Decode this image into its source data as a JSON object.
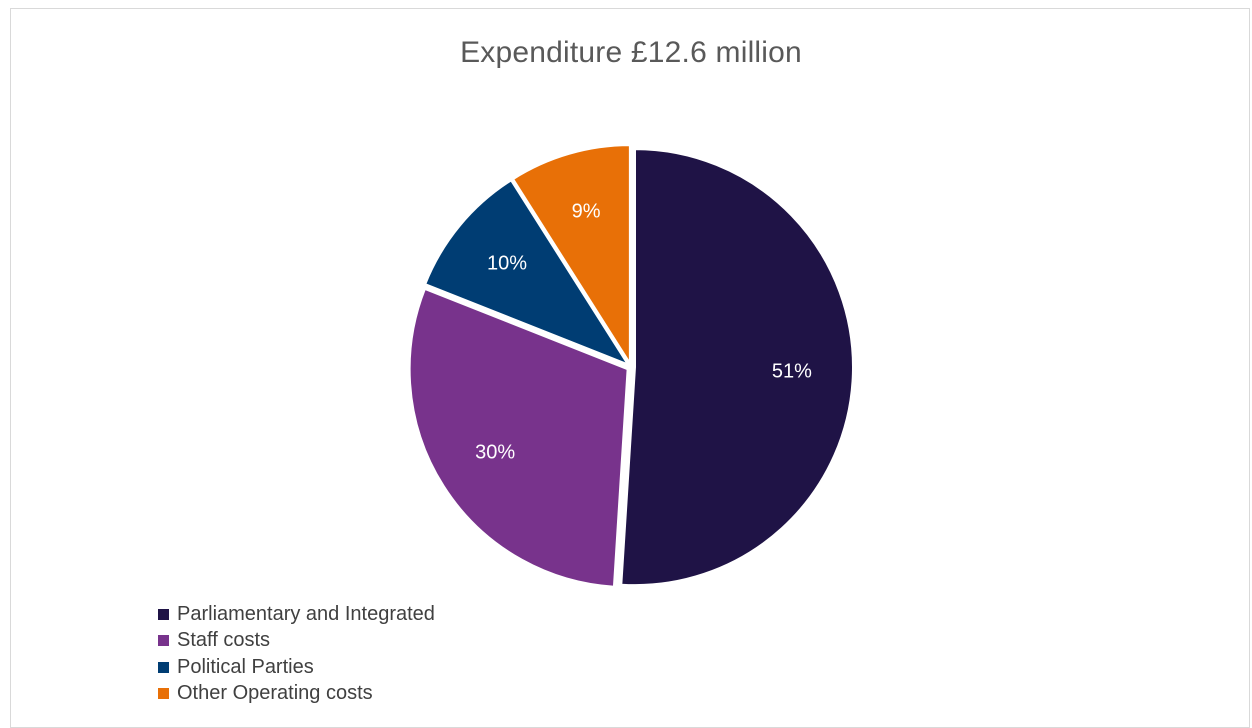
{
  "chart_data": {
    "type": "pie",
    "title": "Expenditure £12.6 million",
    "legend_position": "bottom-left",
    "categories": [
      "Parliamentary and Integrated",
      "Staff costs",
      "Political Parties",
      "Other Operating costs"
    ],
    "values": [
      51,
      30,
      10,
      9
    ],
    "labels": [
      "51%",
      "30%",
      "10%",
      "9%"
    ],
    "colors": [
      "#1f1346",
      "#78338c",
      "#003d73",
      "#e87007"
    ]
  }
}
